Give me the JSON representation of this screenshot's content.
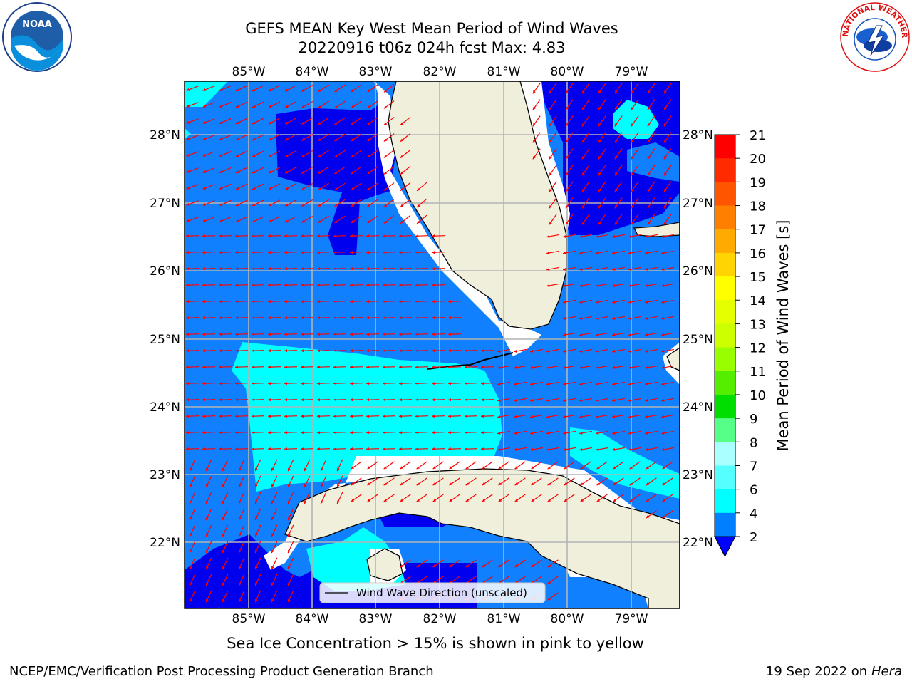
{
  "title_line1": "GEFS MEAN Key West Mean Period of Wind Waves",
  "title_line2": "20220916 t06z 024h fcst   Max: 4.83",
  "lon_ticks": [
    "85°W",
    "84°W",
    "83°W",
    "82°W",
    "81°W",
    "80°W",
    "79°W"
  ],
  "lat_ticks": [
    "28°N",
    "27°N",
    "26°N",
    "25°N",
    "24°N",
    "23°N",
    "22°N"
  ],
  "legend_label": "Wind Wave Direction (unscaled)",
  "colorbar": {
    "label": "Mean Period of Wind Waves [s]",
    "ticks": [
      "21",
      "20",
      "19",
      "18",
      "17",
      "16",
      "15",
      "14",
      "13",
      "12",
      "11",
      "10",
      "9",
      "8",
      "7",
      "6",
      "4",
      "2"
    ],
    "colors": [
      "#ff0000",
      "#ff2a00",
      "#ff5500",
      "#ff7f00",
      "#ffaa00",
      "#ffd400",
      "#ffff00",
      "#e6ff00",
      "#ccff00",
      "#99ff00",
      "#55ee00",
      "#00dd00",
      "#55ff88",
      "#aaffff",
      "#55ffff",
      "#00ffff",
      "#0080ff",
      "#0000ff"
    ]
  },
  "colors": {
    "water_low": "#1080ff",
    "water_lowest": "#0000ee",
    "water_mid": "#00ffff",
    "land": "#efefdc",
    "arrow": "#ff0000",
    "grid": "#b4b4b4"
  },
  "note": "Sea Ice Concentration > 15% is shown in pink to yellow",
  "credit": "NCEP/EMC/Verification Post Processing Product Generation Branch",
  "date": "19 Sep 2022 on",
  "date_host": "Hera",
  "logos": {
    "noaa": "NOAA",
    "nws": "NATIONAL WEATHER SERVICE"
  }
}
